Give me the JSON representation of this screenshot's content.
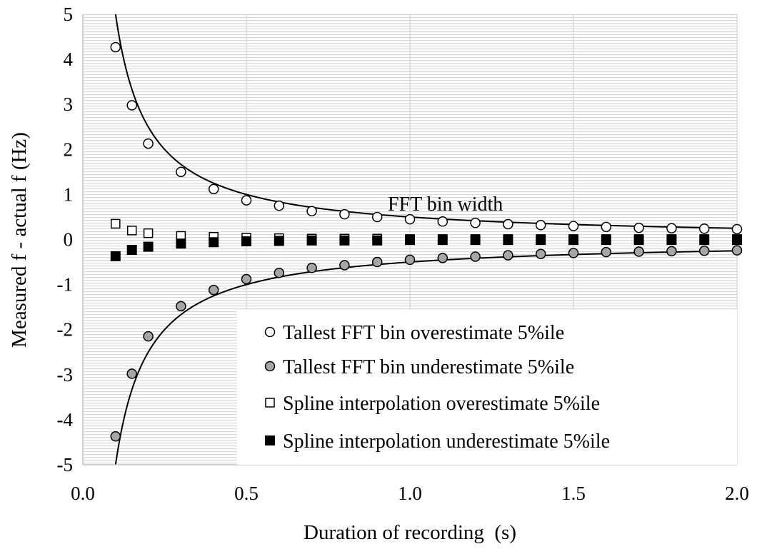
{
  "chart_data": {
    "type": "scatter",
    "title": "",
    "xlabel": "Duration of recording  (s)",
    "ylabel": "Measured f - actual f (Hz)",
    "xlim": [
      0,
      2
    ],
    "ylim": [
      -5,
      5
    ],
    "x_ticks": [
      "0.0",
      "0.5",
      "1.0",
      "1.5",
      "2.0"
    ],
    "y_ticks": [
      "5",
      "4",
      "3",
      "2",
      "1",
      "0",
      "-1",
      "-2",
      "-3",
      "-4",
      "-5"
    ],
    "grid": true,
    "legend_position": "bottom-right",
    "annotation": "FFT bin width",
    "x": [
      0.1,
      0.15,
      0.2,
      0.3,
      0.4,
      0.5,
      0.6,
      0.7,
      0.8,
      0.9,
      1.0,
      1.1,
      1.2,
      1.3,
      1.4,
      1.5,
      1.6,
      1.7,
      1.8,
      1.9,
      2.0
    ],
    "series": [
      {
        "name": "Tallest FFT bin overestimate 5%ile",
        "marker": "circle-open",
        "values": [
          4.27,
          2.98,
          2.13,
          1.5,
          1.12,
          0.87,
          0.75,
          0.63,
          0.56,
          0.5,
          0.45,
          0.4,
          0.37,
          0.34,
          0.32,
          0.3,
          0.28,
          0.26,
          0.25,
          0.24,
          0.23
        ]
      },
      {
        "name": "Tallest FFT bin underestimate 5%ile",
        "marker": "circle-gray",
        "values": [
          -4.37,
          -2.98,
          -2.15,
          -1.48,
          -1.12,
          -0.88,
          -0.74,
          -0.63,
          -0.57,
          -0.5,
          -0.45,
          -0.41,
          -0.38,
          -0.35,
          -0.32,
          -0.3,
          -0.28,
          -0.27,
          -0.26,
          -0.25,
          -0.24
        ]
      },
      {
        "name": "Spline interpolation overestimate 5%ile",
        "marker": "square-open",
        "values": [
          0.35,
          0.2,
          0.14,
          0.08,
          0.06,
          0.04,
          0.03,
          0.02,
          0.02,
          0.02,
          0.01,
          0.01,
          0.01,
          0.01,
          0.01,
          0.01,
          0.01,
          0.01,
          0.01,
          0.01,
          0.01
        ]
      },
      {
        "name": "Spline interpolation underestimate 5%ile",
        "marker": "square-filled",
        "values": [
          -0.37,
          -0.23,
          -0.16,
          -0.09,
          -0.06,
          -0.04,
          -0.03,
          -0.02,
          -0.02,
          -0.02,
          -0.01,
          -0.01,
          -0.01,
          -0.01,
          -0.01,
          -0.01,
          -0.01,
          -0.01,
          -0.01,
          -0.01,
          -0.01
        ]
      }
    ],
    "curves": {
      "formula": "±0.5/duration",
      "x": [
        0.1,
        0.15,
        0.2,
        0.3,
        0.4,
        0.5,
        0.6,
        0.7,
        0.8,
        0.9,
        1.0,
        1.1,
        1.2,
        1.3,
        1.4,
        1.5,
        1.6,
        1.7,
        1.8,
        1.9,
        2.0
      ],
      "upper": [
        5.0,
        3.33,
        2.5,
        1.67,
        1.25,
        1.0,
        0.83,
        0.71,
        0.63,
        0.56,
        0.5,
        0.45,
        0.42,
        0.38,
        0.36,
        0.33,
        0.31,
        0.29,
        0.28,
        0.26,
        0.25
      ],
      "lower": [
        -5.0,
        -3.33,
        -2.5,
        -1.67,
        -1.25,
        -1.0,
        -0.83,
        -0.71,
        -0.63,
        -0.56,
        -0.5,
        -0.45,
        -0.42,
        -0.38,
        -0.36,
        -0.33,
        -0.31,
        -0.29,
        -0.28,
        -0.26,
        -0.25
      ]
    }
  }
}
